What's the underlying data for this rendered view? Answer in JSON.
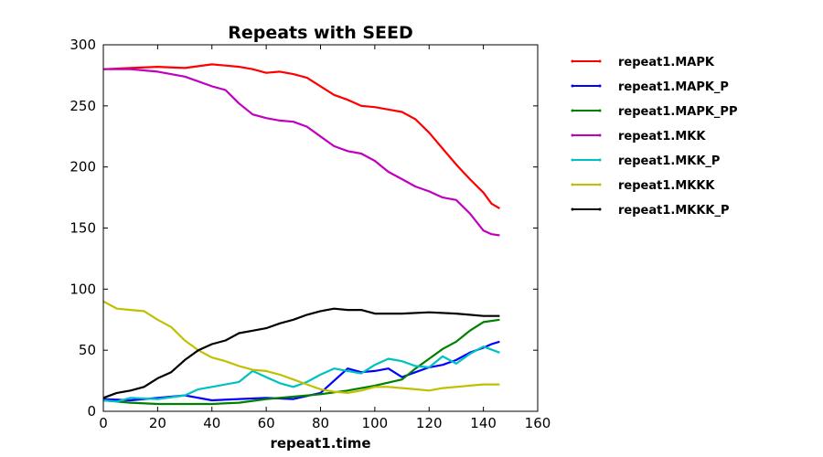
{
  "chart_data": {
    "type": "line",
    "title": "Repeats with SEED",
    "xlabel": "repeat1.time",
    "ylabel": "",
    "xlim": [
      0,
      160
    ],
    "ylim": [
      0,
      300
    ],
    "xticks": [
      0,
      20,
      40,
      60,
      80,
      100,
      120,
      140,
      160
    ],
    "yticks": [
      0,
      50,
      100,
      150,
      200,
      250,
      300
    ],
    "grid": false,
    "legend_position": "outside-right",
    "series": [
      {
        "name": "repeat1.MAPK",
        "color": "#ff0000",
        "x": [
          0,
          10,
          20,
          30,
          40,
          45,
          50,
          55,
          60,
          65,
          70,
          75,
          80,
          85,
          90,
          95,
          100,
          105,
          110,
          115,
          120,
          125,
          130,
          135,
          140,
          143,
          146
        ],
        "y": [
          280,
          281,
          282,
          281,
          284,
          283,
          282,
          280,
          277,
          278,
          276,
          273,
          266,
          259,
          255,
          250,
          249,
          247,
          245,
          239,
          228,
          215,
          202,
          190,
          179,
          170,
          166
        ]
      },
      {
        "name": "repeat1.MAPK_P",
        "color": "#0000ff",
        "x": [
          0,
          10,
          20,
          30,
          40,
          50,
          60,
          70,
          80,
          85,
          90,
          95,
          100,
          105,
          110,
          115,
          120,
          125,
          130,
          135,
          140,
          143,
          146
        ],
        "y": [
          10,
          9,
          11,
          13,
          9,
          10,
          11,
          10,
          15,
          25,
          35,
          32,
          33,
          35,
          28,
          32,
          36,
          38,
          42,
          48,
          52,
          55,
          57
        ]
      },
      {
        "name": "repeat1.MAPK_PP",
        "color": "#008000",
        "x": [
          0,
          10,
          20,
          30,
          40,
          50,
          60,
          70,
          80,
          90,
          100,
          110,
          115,
          120,
          125,
          130,
          135,
          140,
          146
        ],
        "y": [
          9,
          7,
          6,
          6,
          6,
          7,
          10,
          12,
          14,
          17,
          21,
          26,
          35,
          43,
          51,
          57,
          66,
          73,
          75
        ]
      },
      {
        "name": "repeat1.MKK",
        "color": "#c000c0",
        "x": [
          0,
          10,
          20,
          30,
          40,
          45,
          50,
          55,
          60,
          65,
          70,
          75,
          80,
          85,
          90,
          95,
          100,
          105,
          110,
          115,
          120,
          125,
          130,
          135,
          140,
          143,
          146
        ],
        "y": [
          280,
          280,
          278,
          274,
          266,
          263,
          252,
          243,
          240,
          238,
          237,
          233,
          225,
          217,
          213,
          211,
          205,
          196,
          190,
          184,
          180,
          175,
          173,
          162,
          148,
          145,
          144
        ]
      },
      {
        "name": "repeat1.MKK_P",
        "color": "#00c0c0",
        "x": [
          0,
          5,
          10,
          20,
          30,
          35,
          40,
          50,
          55,
          60,
          65,
          70,
          75,
          80,
          85,
          90,
          95,
          100,
          105,
          110,
          115,
          120,
          125,
          130,
          135,
          140,
          146
        ],
        "y": [
          9,
          8,
          11,
          10,
          13,
          18,
          20,
          24,
          33,
          28,
          23,
          20,
          24,
          30,
          35,
          33,
          31,
          38,
          43,
          41,
          37,
          36,
          45,
          39,
          47,
          53,
          48
        ]
      },
      {
        "name": "repeat1.MKKK",
        "color": "#c0c000",
        "x": [
          0,
          5,
          10,
          15,
          20,
          25,
          30,
          35,
          40,
          45,
          50,
          55,
          60,
          65,
          70,
          75,
          80,
          85,
          90,
          95,
          100,
          105,
          110,
          115,
          120,
          125,
          130,
          135,
          140,
          146
        ],
        "y": [
          90,
          84,
          83,
          82,
          75,
          69,
          58,
          50,
          44,
          41,
          37,
          34,
          33,
          30,
          26,
          22,
          18,
          16,
          15,
          17,
          20,
          20,
          19,
          18,
          17,
          19,
          20,
          21,
          22,
          22
        ]
      },
      {
        "name": "repeat1.MKKK_P",
        "color": "#000000",
        "x": [
          0,
          5,
          10,
          15,
          20,
          25,
          30,
          35,
          40,
          45,
          50,
          55,
          60,
          65,
          70,
          75,
          80,
          85,
          90,
          95,
          100,
          110,
          120,
          130,
          140,
          146
        ],
        "y": [
          11,
          15,
          17,
          20,
          27,
          32,
          42,
          50,
          55,
          58,
          64,
          66,
          68,
          72,
          75,
          79,
          82,
          84,
          83,
          83,
          80,
          80,
          81,
          80,
          78,
          78
        ]
      }
    ]
  }
}
